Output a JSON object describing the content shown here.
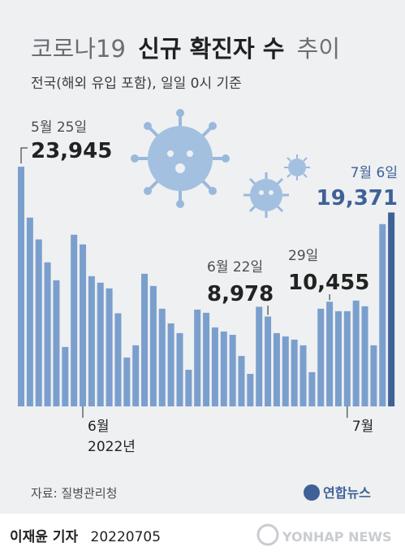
{
  "chart_data": {
    "type": "bar",
    "title_parts": [
      "코로나19",
      "신규 확진자 수",
      "추이"
    ],
    "subtitle": "전국(해외 유입 포함), 일일 0시 기준",
    "categories": [
      null,
      null,
      null,
      null,
      null,
      null,
      null,
      "6월",
      null,
      null,
      null,
      null,
      null,
      null,
      null,
      null,
      null,
      null,
      null,
      null,
      null,
      null,
      null,
      null,
      null,
      null,
      null,
      null,
      null,
      null,
      null,
      null,
      null,
      null,
      null,
      null,
      null,
      "7월",
      null,
      null,
      null,
      null,
      null
    ],
    "year_label": "2022년",
    "values": [
      23945,
      18860,
      16680,
      14390,
      12600,
      5935,
      17150,
      16180,
      13010,
      12360,
      11790,
      9300,
      4880,
      6100,
      13250,
      12030,
      9760,
      8290,
      7320,
      3660,
      9670,
      9350,
      7890,
      7480,
      7150,
      5040,
      3250,
      9950,
      8978,
      7320,
      6990,
      6670,
      6100,
      3420,
      9760,
      10455,
      9510,
      9510,
      10570,
      10000,
      6100,
      18210,
      19371
    ],
    "value_labels": [
      "23,945",
      null,
      null,
      null,
      null,
      null,
      null,
      null,
      null,
      null,
      null,
      null,
      null,
      null,
      null,
      null,
      null,
      null,
      null,
      null,
      null,
      null,
      null,
      null,
      null,
      null,
      null,
      null,
      "8,978",
      null,
      null,
      null,
      null,
      null,
      null,
      "10,455",
      null,
      null,
      null,
      null,
      null,
      null,
      "19,371"
    ],
    "annotations": [
      {
        "index": 0,
        "label": "5월 25일"
      },
      {
        "index": 28,
        "label": "6월 22일"
      },
      {
        "index": 35,
        "label": "29일"
      },
      {
        "index": 42,
        "label": "7월 6일"
      }
    ],
    "color": "#7b9fcd",
    "highlight_color": "#3f6198",
    "ylim": [
      0,
      25000
    ],
    "source": "자료: 질병관리청",
    "byline": "이재윤 기자",
    "date": "20220705",
    "logo": "연합뉴스",
    "logo_en": "YONHAP NEWS"
  }
}
